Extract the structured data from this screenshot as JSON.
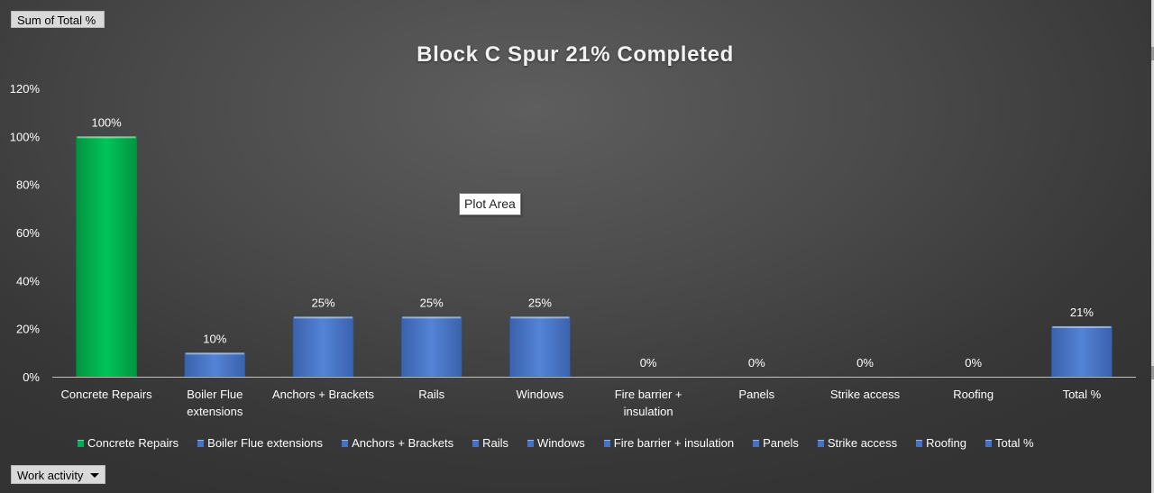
{
  "pivot": {
    "value_field": "Sum of Total %",
    "axis_field": "Work activity"
  },
  "tooltip": "Plot Area",
  "colors": {
    "highlight_bar": "#00b050",
    "default_bar": "#4472c4"
  },
  "chart_data": {
    "type": "bar",
    "title": "Block C Spur 21% Completed",
    "categories": [
      "Concrete Repairs",
      "Boiler Flue extensions",
      "Anchors + Brackets",
      "Rails",
      "Windows",
      "Fire barrier + insulation",
      "Panels",
      "Strike access",
      "Roofing",
      "Total %"
    ],
    "category_axis_labels": [
      [
        "Concrete Repairs"
      ],
      [
        "Boiler Flue",
        "extensions"
      ],
      [
        "Anchors + Brackets"
      ],
      [
        "Rails"
      ],
      [
        "Windows"
      ],
      [
        "Fire barrier +",
        "insulation"
      ],
      [
        "Panels"
      ],
      [
        "Strike access"
      ],
      [
        "Roofing"
      ],
      [
        "Total %"
      ]
    ],
    "values": [
      1.0,
      0.1,
      0.25,
      0.25,
      0.25,
      0,
      0,
      0,
      0,
      0.21
    ],
    "data_labels": [
      "100%",
      "10%",
      "25%",
      "25%",
      "25%",
      "0%",
      "0%",
      "0%",
      "0%",
      "21%"
    ],
    "ylim": [
      0,
      1.2
    ],
    "y_ticks": [
      0,
      0.2,
      0.4,
      0.6,
      0.8,
      1.0,
      1.2
    ],
    "y_tick_labels": [
      "0%",
      "20%",
      "40%",
      "60%",
      "80%",
      "100%",
      "120%"
    ],
    "xlabel": "",
    "ylabel": "",
    "grid": false,
    "legend_position": "bottom",
    "legend": [
      "Concrete Repairs",
      "Boiler Flue extensions",
      "Anchors + Brackets",
      "Rails",
      "Windows",
      "Fire barrier + insulation",
      "Panels",
      "Strike access",
      "Roofing",
      "Total %"
    ],
    "bar_colors": [
      "#00b050",
      "#4472c4",
      "#4472c4",
      "#4472c4",
      "#4472c4",
      "#4472c4",
      "#4472c4",
      "#4472c4",
      "#4472c4",
      "#4472c4"
    ]
  }
}
